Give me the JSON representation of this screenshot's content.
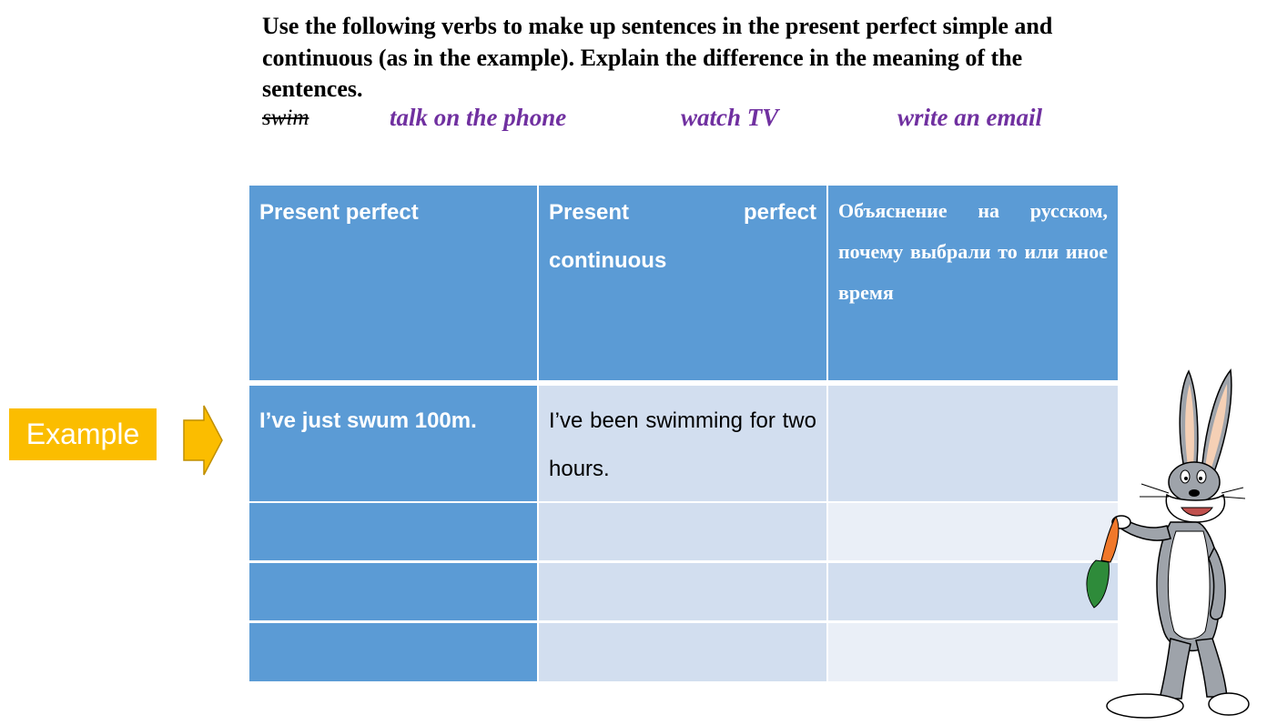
{
  "instructions": "Use the following verbs to make up sentences in the present perfect simple and continuous (as in the example). Explain the difference in the meaning of the sentences.",
  "verbs": [
    "swim",
    "talk on the phone",
    "watch TV",
    "write an email"
  ],
  "table": {
    "headers": [
      "Present perfect",
      "Present perfect continuous",
      "Объяснение на русском, почему выбрали то или иное время"
    ],
    "example_row": [
      "I’ve just swum 100m.",
      "I’ve been swimming for two hours.",
      ""
    ],
    "empty_rows": 3
  },
  "example_label": "Example",
  "colors": {
    "header_blue": "#5b9bd5",
    "light_blue": "#d2deef",
    "lighter_blue": "#eaeff7",
    "verb_purple": "#7030a0",
    "example_yellow": "#fbbd00"
  },
  "icons": [
    "right-arrow-icon",
    "bugs-bunny-illustration"
  ]
}
